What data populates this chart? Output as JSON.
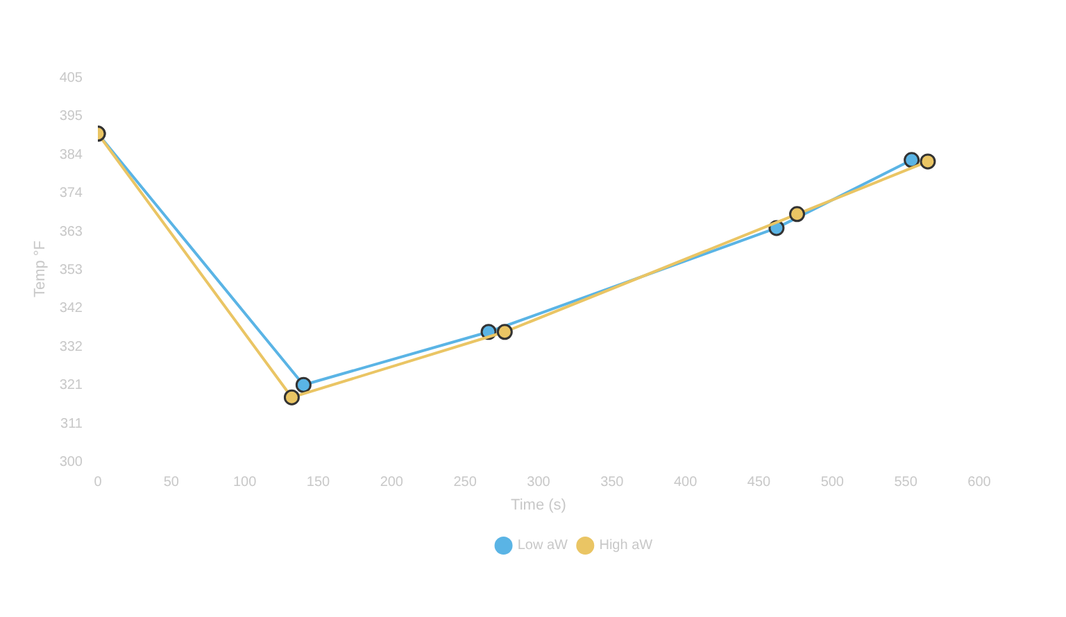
{
  "chart_data": {
    "type": "line",
    "xlabel": "Time (s)",
    "ylabel": "Temp °F",
    "xlim": [
      0,
      600
    ],
    "xticks": [
      0,
      50,
      100,
      150,
      200,
      250,
      300,
      350,
      400,
      450,
      500,
      550,
      600
    ],
    "ylim": [
      300,
      405
    ],
    "yticks": [
      300,
      {
        "value": 310.5,
        "label": "311"
      },
      321,
      {
        "value": 331.5,
        "label": "332"
      },
      342,
      {
        "value": 352.5,
        "label": "353"
      },
      363,
      {
        "value": 373.5,
        "label": "374"
      },
      384,
      {
        "value": 394.5,
        "label": "395"
      },
      405
    ],
    "grid": false,
    "legend": "bottom",
    "marker": "circle",
    "line_style": "solid",
    "series": [
      {
        "name": "Low aW",
        "color": "#5ab4e5",
        "x": [
          0,
          140,
          266,
          462,
          554
        ],
        "values": [
          389.5,
          320.8,
          335.3,
          363.7,
          382.3
        ]
      },
      {
        "name": "High aW",
        "color": "#eac564",
        "x": [
          0,
          132,
          277,
          476,
          565
        ],
        "values": [
          389.5,
          317.4,
          335.3,
          367.5,
          381.9
        ]
      }
    ]
  }
}
